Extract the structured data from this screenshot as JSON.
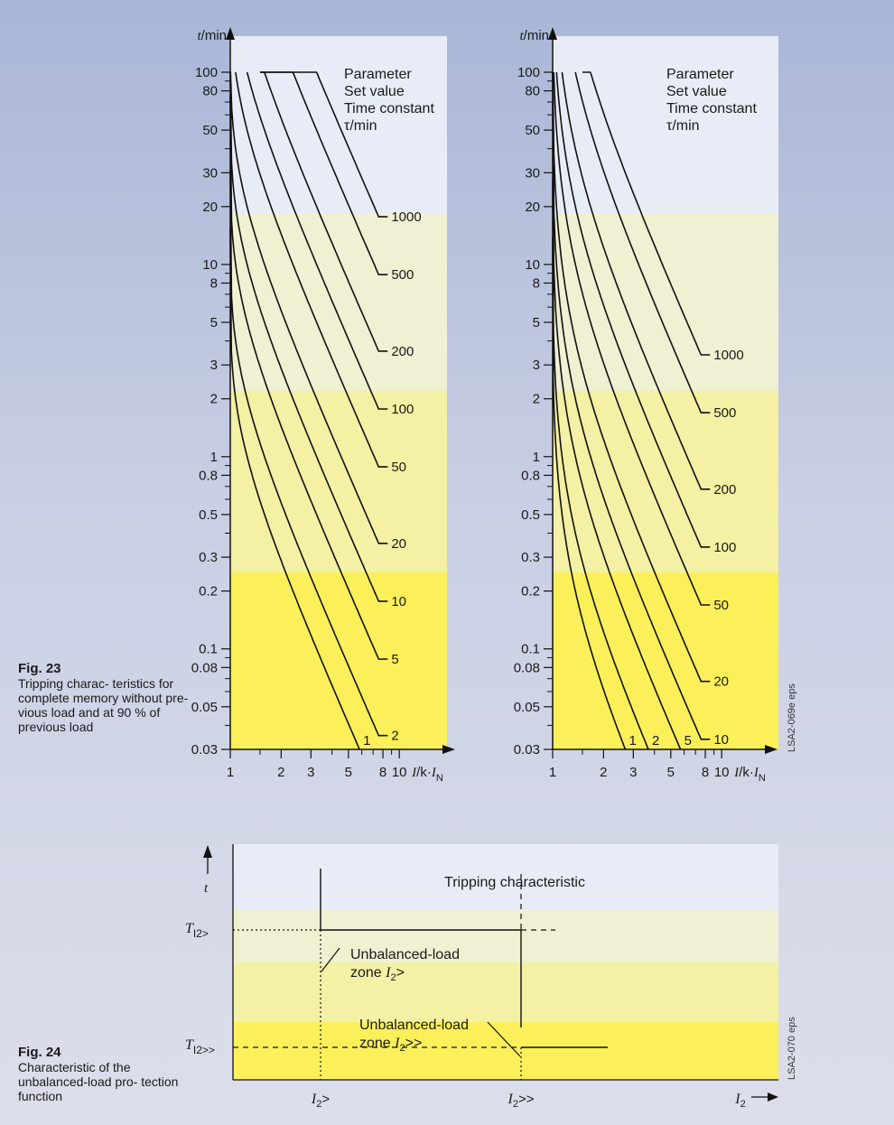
{
  "captions": {
    "fig23": {
      "label": "Fig. 23",
      "text": "Tripping charac- teristics for complete memory without pre- vious load and at 90 % of previous load"
    },
    "fig24": {
      "label": "Fig. 24",
      "text": "Characteristic of the unbalanced-load pro- tection function"
    }
  },
  "colors": {
    "band_top": "#e8ecf6",
    "band_light": "#f0f0d2",
    "band_mid": "#f4f0a4",
    "band_strong": "#fbf05a",
    "line": "#111111"
  },
  "chart_data": [
    {
      "id": "fig23-left",
      "type": "line",
      "scale": "log-log",
      "ylabel": "t/min",
      "xlabel": "I/k·I_N",
      "xlabel_parts": {
        "main": "I/k·I",
        "sub": "N"
      },
      "xlim": [
        1,
        12
      ],
      "ylim": [
        0.03,
        100
      ],
      "x_ticks": [
        1,
        2,
        3,
        5,
        8,
        10
      ],
      "x_tick_labels": [
        "1",
        "2",
        "3",
        "5",
        "8",
        "10"
      ],
      "y_ticks": [
        0.03,
        0.05,
        0.08,
        0.1,
        0.2,
        0.3,
        0.5,
        0.8,
        1,
        2,
        3,
        5,
        8,
        10,
        20,
        30,
        50,
        80,
        100
      ],
      "y_tick_labels": [
        "0.03",
        "0.05",
        "0.08",
        "0.1",
        "0.2",
        "0.3",
        "0.5",
        "0.8",
        "1",
        "2",
        "3",
        "5",
        "8",
        "10",
        "20",
        "30",
        "50",
        "80",
        "100"
      ],
      "legend_lines": [
        "Parameter",
        "Set value",
        "Time constant",
        "τ/min"
      ],
      "prev_load": 0,
      "series": [
        {
          "name": "1",
          "tau": 1
        },
        {
          "name": "2",
          "tau": 2
        },
        {
          "name": "5",
          "tau": 5
        },
        {
          "name": "10",
          "tau": 10
        },
        {
          "name": "20",
          "tau": 20
        },
        {
          "name": "50",
          "tau": 50
        },
        {
          "name": "100",
          "tau": 100
        },
        {
          "name": "200",
          "tau": 200
        },
        {
          "name": "500",
          "tau": 500
        },
        {
          "name": "1000",
          "tau": 1000
        }
      ],
      "source": "LSA2-069e eps"
    },
    {
      "id": "fig23-right",
      "type": "line",
      "scale": "log-log",
      "ylabel": "t/min",
      "xlabel": "I/k·I_N",
      "xlabel_parts": {
        "main": "I/k·I",
        "sub": "N"
      },
      "xlim": [
        1,
        12
      ],
      "ylim": [
        0.03,
        100
      ],
      "x_ticks": [
        1,
        2,
        3,
        5,
        8,
        10
      ],
      "x_tick_labels": [
        "1",
        "2",
        "3",
        "5",
        "8",
        "10"
      ],
      "y_ticks": [
        0.03,
        0.05,
        0.08,
        0.1,
        0.2,
        0.3,
        0.5,
        0.8,
        1,
        2,
        3,
        5,
        8,
        10,
        20,
        30,
        50,
        80,
        100
      ],
      "y_tick_labels": [
        "0.03",
        "0.05",
        "0.08",
        "0.1",
        "0.2",
        "0.3",
        "0.5",
        "0.8",
        "1",
        "2",
        "3",
        "5",
        "8",
        "10",
        "20",
        "30",
        "50",
        "80",
        "100"
      ],
      "legend_lines": [
        "Parameter",
        "Set value",
        "Time constant",
        "τ/min"
      ],
      "prev_load": 0.9,
      "series": [
        {
          "name": "1",
          "tau": 1
        },
        {
          "name": "2",
          "tau": 2
        },
        {
          "name": "5",
          "tau": 5
        },
        {
          "name": "10",
          "tau": 10
        },
        {
          "name": "20",
          "tau": 20
        },
        {
          "name": "50",
          "tau": 50
        },
        {
          "name": "100",
          "tau": 100
        },
        {
          "name": "200",
          "tau": 200
        },
        {
          "name": "500",
          "tau": 500
        },
        {
          "name": "1000",
          "tau": 1000
        }
      ]
    },
    {
      "id": "fig24",
      "type": "line",
      "title": "Tripping characteristic",
      "y_axis_label": "t",
      "y_labels": [
        {
          "main": "T",
          "sub": "I2>"
        },
        {
          "main": "T",
          "sub": "I2>>"
        }
      ],
      "x_labels": [
        {
          "main": "I",
          "sub": "2",
          "suffix": ">"
        },
        {
          "main": "I",
          "sub": "2",
          "suffix": ">>"
        },
        {
          "main": "I",
          "sub": "2",
          "suffix": ""
        }
      ],
      "annotations": [
        {
          "lines": [
            "Unbalanced-load",
            "zone "
          ],
          "var": "I",
          "sub": "2",
          "suffix": ">"
        },
        {
          "lines": [
            "Unbalanced-load",
            "zone "
          ],
          "var": "I",
          "sub": "2",
          "suffix": ">>"
        }
      ],
      "source": "LSA2-070 eps"
    }
  ]
}
